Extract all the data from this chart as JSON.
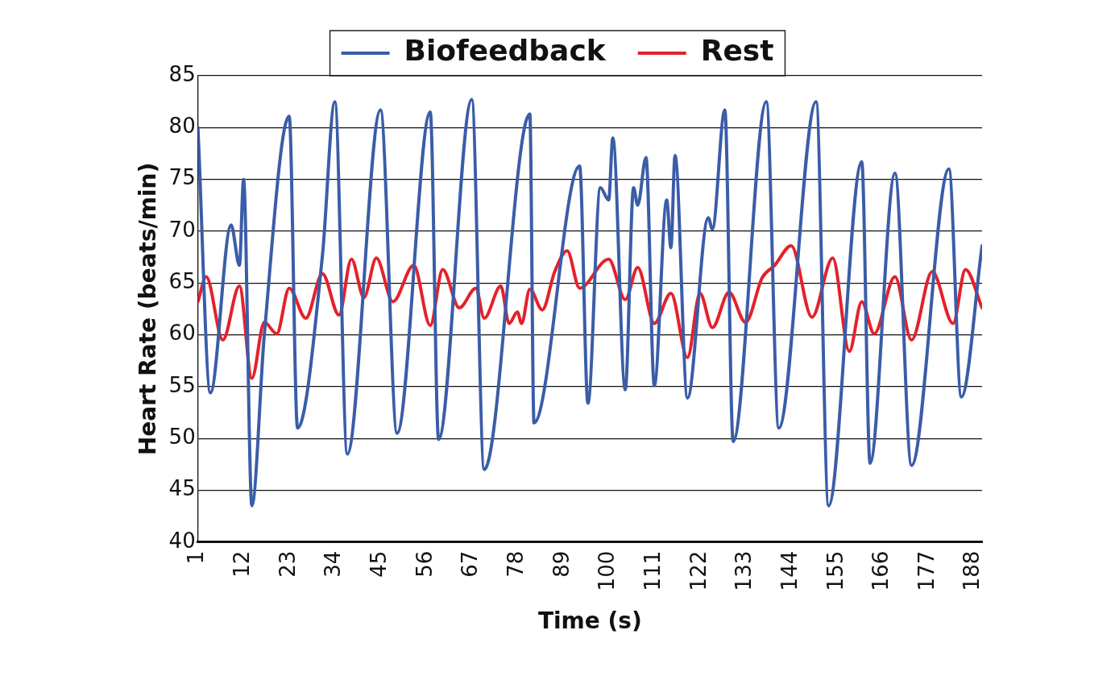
{
  "chart_data": {
    "type": "line",
    "xlabel": "Time (s)",
    "ylabel": "Heart Rate (beats/min)",
    "xlim": [
      1,
      190
    ],
    "xticks": [
      1,
      12,
      23,
      34,
      45,
      56,
      67,
      78,
      89,
      100,
      111,
      122,
      133,
      144,
      155,
      166,
      177,
      188
    ],
    "ylim": [
      40,
      85
    ],
    "yticks": [
      40,
      45,
      50,
      55,
      60,
      65,
      70,
      75,
      80,
      85
    ],
    "grid": "y",
    "legend": "top",
    "marker": "none",
    "line_style": "solid",
    "series": [
      {
        "name": "Biofeedback",
        "color": "#3a5da8",
        "x": [
          1,
          4,
          9,
          11,
          12,
          14,
          17,
          23,
          25,
          31,
          34,
          37,
          45,
          49,
          57,
          59,
          67,
          70,
          81,
          82,
          93,
          95,
          98,
          100,
          101,
          104,
          106,
          107,
          109,
          111,
          114,
          115,
          116,
          119,
          124,
          125,
          128,
          130,
          138,
          141,
          150,
          153,
          161,
          163,
          169,
          173,
          182,
          185,
          190
        ],
        "values": [
          80,
          54.4,
          70.6,
          66.7,
          75,
          43.5,
          60,
          81.1,
          51,
          67.6,
          82.5,
          48.5,
          81.7,
          50.5,
          81.5,
          49.9,
          82.7,
          47,
          81.3,
          51.5,
          76.3,
          53.4,
          74.2,
          73,
          79,
          54.7,
          74.2,
          72.5,
          77.1,
          55.1,
          73,
          68.4,
          77.3,
          53.9,
          71.3,
          70.2,
          81.7,
          49.7,
          82.5,
          51,
          82.5,
          43.5,
          76.7,
          47.6,
          75.6,
          47.4,
          76,
          54,
          68.6
        ]
      },
      {
        "name": "Rest",
        "color": "#e3222b",
        "x": [
          1,
          3,
          7,
          11,
          14,
          17,
          20,
          23,
          27,
          31,
          35,
          38,
          41,
          44,
          48,
          53,
          57,
          60,
          64,
          68,
          70,
          74,
          76,
          78,
          79,
          81,
          84,
          87,
          90,
          93,
          100,
          104,
          107,
          111,
          115,
          119,
          122,
          125,
          129,
          133,
          137,
          140,
          144,
          149,
          154,
          158,
          161,
          164,
          169,
          173,
          178,
          183,
          186,
          190
        ],
        "values": [
          63.2,
          65.6,
          59.5,
          64.7,
          55.8,
          61.2,
          60.1,
          64.5,
          61.6,
          65.9,
          61.9,
          67.3,
          63.6,
          67.4,
          63.2,
          66.7,
          60.9,
          66.3,
          62.6,
          64.5,
          61.6,
          64.7,
          61.1,
          62.2,
          61.1,
          64.4,
          62.4,
          66.1,
          68.1,
          64.5,
          67.3,
          63.4,
          66.5,
          61.1,
          64,
          57.8,
          64,
          60.7,
          64.1,
          61.2,
          65.5,
          66.7,
          68.6,
          61.7,
          67.4,
          58.4,
          63.2,
          60.1,
          65.6,
          59.5,
          66.1,
          61.1,
          66.3,
          62.6
        ]
      }
    ]
  }
}
